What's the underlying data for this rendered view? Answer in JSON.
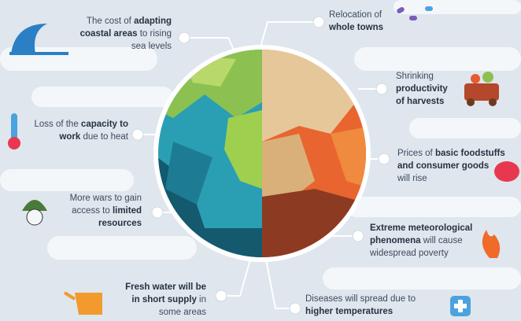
{
  "items": [
    {
      "lines": [
        [
          {
            "text": "The cost of ",
            "bold": false
          },
          {
            "text": "adapting",
            "bold": true
          }
        ],
        [
          {
            "text": "coastal areas",
            "bold": true
          },
          {
            "text": " to rising",
            "bold": false
          }
        ],
        [
          {
            "text": "sea levels",
            "bold": false
          }
        ]
      ]
    },
    {
      "lines": [
        [
          {
            "text": "Relocation of",
            "bold": false
          }
        ],
        [
          {
            "text": "whole towns",
            "bold": true
          }
        ]
      ]
    },
    {
      "lines": [
        [
          {
            "text": "Shrinking",
            "bold": false
          }
        ],
        [
          {
            "text": "productivity",
            "bold": true
          }
        ],
        [
          {
            "text": "of harvests",
            "bold": true
          }
        ]
      ]
    },
    {
      "lines": [
        [
          {
            "text": "Prices of ",
            "bold": false
          },
          {
            "text": "basic foodstuffs",
            "bold": true
          }
        ],
        [
          {
            "text": "and consumer goods",
            "bold": true
          }
        ],
        [
          {
            "text": "will rise",
            "bold": false
          }
        ]
      ]
    },
    {
      "lines": [
        [
          {
            "text": "Extreme meteorological",
            "bold": true
          }
        ],
        [
          {
            "text": "phenomena",
            "bold": true
          },
          {
            "text": " will cause",
            "bold": false
          }
        ],
        [
          {
            "text": "widespread poverty",
            "bold": false
          }
        ]
      ]
    },
    {
      "lines": [
        [
          {
            "text": "Diseases will spread due to",
            "bold": false
          }
        ],
        [
          {
            "text": "higher temperatures",
            "bold": true
          }
        ]
      ]
    },
    {
      "lines": [
        [
          {
            "text": "Fresh water will be",
            "bold": true
          }
        ],
        [
          {
            "text": "in short supply",
            "bold": true
          },
          {
            "text": " in",
            "bold": false
          }
        ],
        [
          {
            "text": "some areas",
            "bold": false
          }
        ]
      ]
    },
    {
      "lines": [
        [
          {
            "text": "More wars to gain",
            "bold": false
          }
        ],
        [
          {
            "text": "access to ",
            "bold": false
          },
          {
            "text": "limited",
            "bold": true
          }
        ],
        [
          {
            "text": "resources",
            "bold": true
          }
        ]
      ]
    },
    {
      "lines": [
        [
          {
            "text": "Loss of the ",
            "bold": false
          },
          {
            "text": "capacity to",
            "bold": true
          }
        ],
        [
          {
            "text": "work",
            "bold": true
          },
          {
            "text": " due to heat",
            "bold": false
          }
        ]
      ]
    }
  ]
}
